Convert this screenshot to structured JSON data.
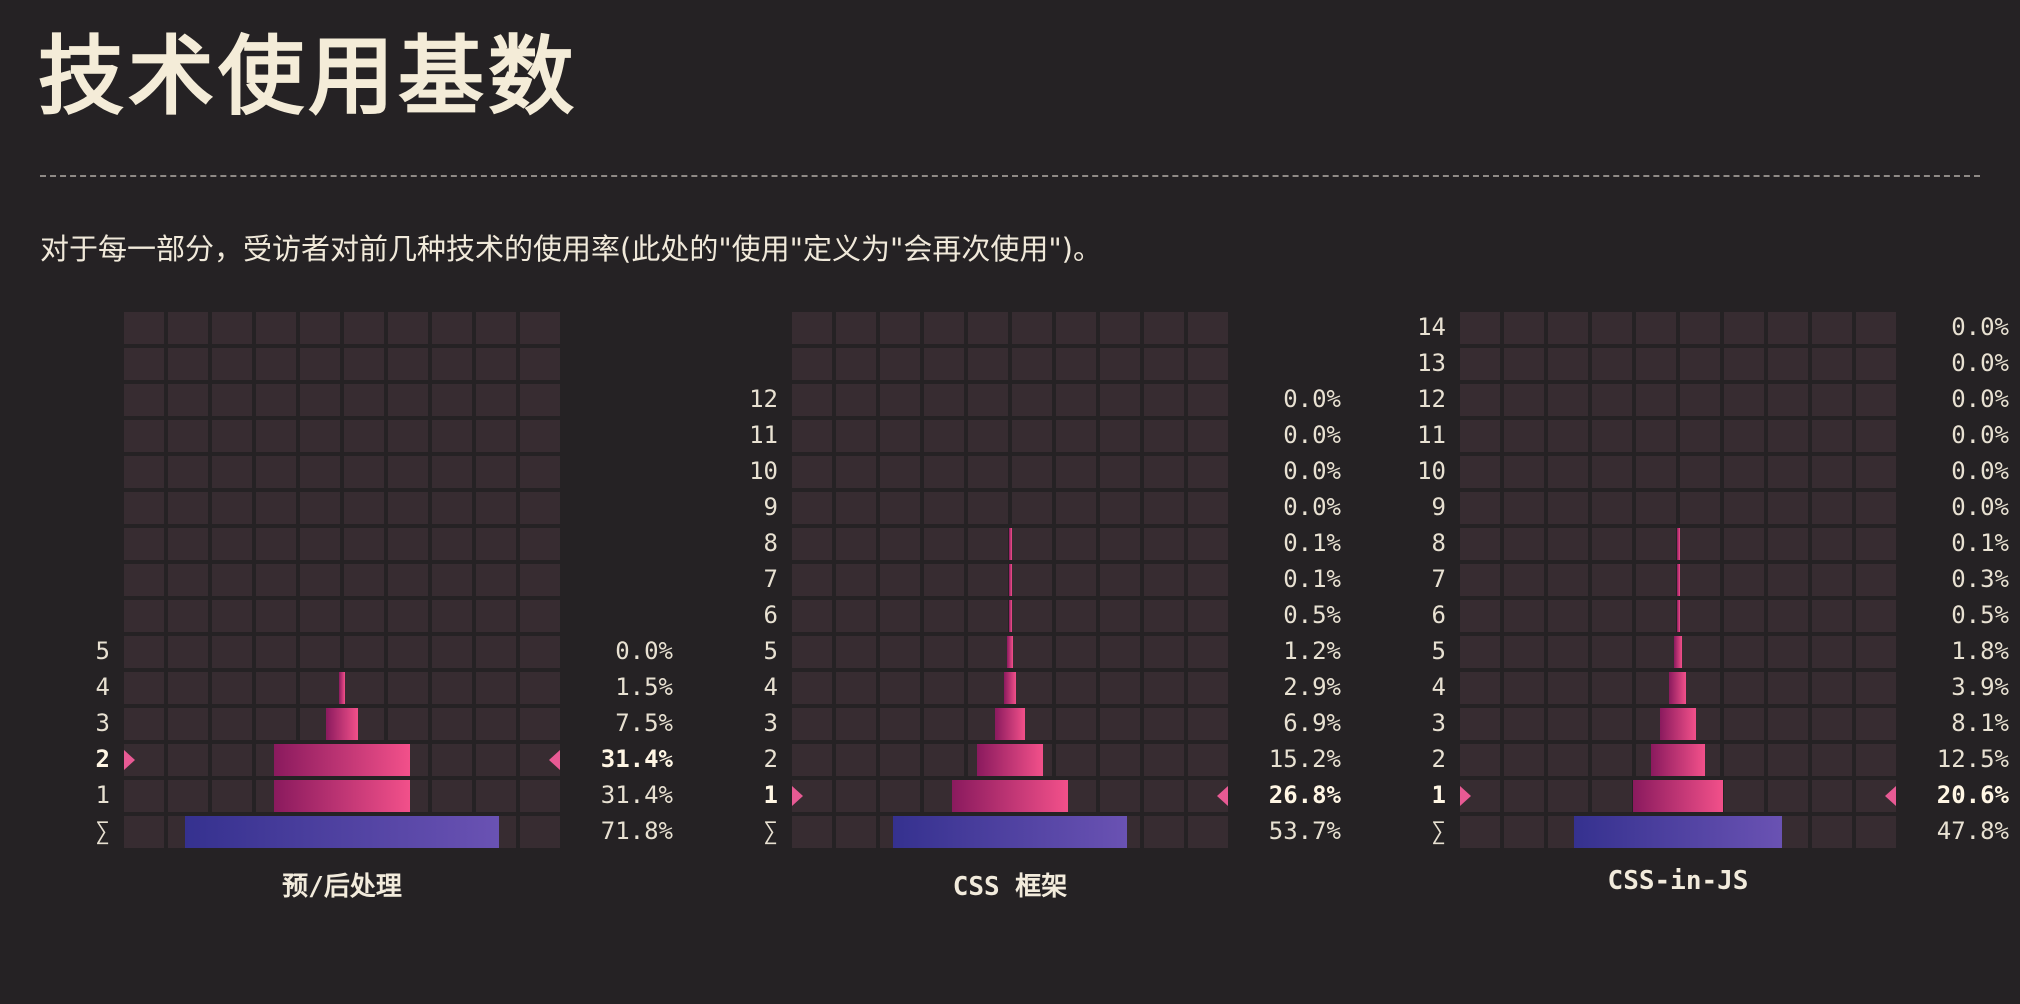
{
  "title": "技术使用基数",
  "description": "对于每一部分，受访者对前几种技术的使用率(此处的\"使用\"定义为\"会再次使用\")。",
  "colors": {
    "background": "#252224",
    "cell": "#372c31",
    "bar_light": "#f2508a",
    "bar_dark": "#8a1a5e",
    "total_bar_start": "#35318f",
    "total_bar_end": "#6a52b3",
    "marker": "#e85a94",
    "text": "#ece5d6"
  },
  "chart_data": [
    {
      "type": "bar",
      "title": "预/后处理",
      "grid_rows": 15,
      "rows": [
        {
          "label": "5",
          "value": 0.0,
          "pct": "0.0%"
        },
        {
          "label": "4",
          "value": 1.5,
          "pct": "1.5%"
        },
        {
          "label": "3",
          "value": 7.5,
          "pct": "7.5%"
        },
        {
          "label": "2",
          "value": 31.4,
          "pct": "31.4%",
          "highlight": true
        },
        {
          "label": "1",
          "value": 31.4,
          "pct": "31.4%"
        }
      ],
      "total": {
        "label": "∑",
        "value": 71.8,
        "pct": "71.8%"
      }
    },
    {
      "type": "bar",
      "title": "CSS 框架",
      "grid_rows": 15,
      "rows": [
        {
          "label": "12",
          "value": 0.0,
          "pct": "0.0%"
        },
        {
          "label": "11",
          "value": 0.0,
          "pct": "0.0%"
        },
        {
          "label": "10",
          "value": 0.0,
          "pct": "0.0%"
        },
        {
          "label": "9",
          "value": 0.0,
          "pct": "0.0%"
        },
        {
          "label": "8",
          "value": 0.1,
          "pct": "0.1%"
        },
        {
          "label": "7",
          "value": 0.1,
          "pct": "0.1%"
        },
        {
          "label": "6",
          "value": 0.5,
          "pct": "0.5%"
        },
        {
          "label": "5",
          "value": 1.2,
          "pct": "1.2%"
        },
        {
          "label": "4",
          "value": 2.9,
          "pct": "2.9%"
        },
        {
          "label": "3",
          "value": 6.9,
          "pct": "6.9%"
        },
        {
          "label": "2",
          "value": 15.2,
          "pct": "15.2%"
        },
        {
          "label": "1",
          "value": 26.8,
          "pct": "26.8%",
          "highlight": true
        }
      ],
      "total": {
        "label": "∑",
        "value": 53.7,
        "pct": "53.7%"
      }
    },
    {
      "type": "bar",
      "title": "CSS-in-JS",
      "grid_rows": 15,
      "rows": [
        {
          "label": "14",
          "value": 0.0,
          "pct": "0.0%"
        },
        {
          "label": "13",
          "value": 0.0,
          "pct": "0.0%"
        },
        {
          "label": "12",
          "value": 0.0,
          "pct": "0.0%"
        },
        {
          "label": "11",
          "value": 0.0,
          "pct": "0.0%"
        },
        {
          "label": "10",
          "value": 0.0,
          "pct": "0.0%"
        },
        {
          "label": "9",
          "value": 0.0,
          "pct": "0.0%"
        },
        {
          "label": "8",
          "value": 0.1,
          "pct": "0.1%"
        },
        {
          "label": "7",
          "value": 0.3,
          "pct": "0.3%"
        },
        {
          "label": "6",
          "value": 0.5,
          "pct": "0.5%"
        },
        {
          "label": "5",
          "value": 1.8,
          "pct": "1.8%"
        },
        {
          "label": "4",
          "value": 3.9,
          "pct": "3.9%"
        },
        {
          "label": "3",
          "value": 8.1,
          "pct": "8.1%"
        },
        {
          "label": "2",
          "value": 12.5,
          "pct": "12.5%"
        },
        {
          "label": "1",
          "value": 20.6,
          "pct": "20.6%",
          "highlight": true
        }
      ],
      "total": {
        "label": "∑",
        "value": 47.8,
        "pct": "47.8%"
      }
    }
  ]
}
